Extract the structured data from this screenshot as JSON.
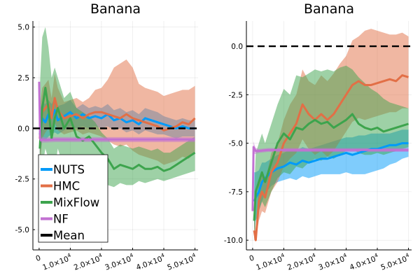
{
  "chart_data": [
    {
      "type": "line",
      "title": "Banana",
      "xlabel": "",
      "ylabel": "",
      "xlim": [
        -2000,
        51000
      ],
      "ylim": [
        -6,
        5.3
      ],
      "xticks": [
        0,
        10000,
        20000,
        30000,
        40000,
        50000
      ],
      "xtick_labels": [
        {
          "base": "0",
          "exp": ""
        },
        {
          "base": "1.0×10",
          "exp": "4"
        },
        {
          "base": "2.0×10",
          "exp": "4"
        },
        {
          "base": "3.0×10",
          "exp": "4"
        },
        {
          "base": "4.0×10",
          "exp": "4"
        },
        {
          "base": "5.0×10",
          "exp": "4"
        }
      ],
      "yticks": [
        5,
        2.5,
        0,
        -2.5,
        -5
      ],
      "ytick_labels": [
        "5.0",
        "2.5",
        "0.0",
        "-2.5",
        "-5.0"
      ],
      "grid": true,
      "legend": {
        "position": "bottom-left"
      },
      "reference_line": {
        "name": "Mean",
        "y": 0,
        "style": "dashed",
        "color": "#000000"
      },
      "series": [
        {
          "name": "NUTS",
          "color": "#009af9",
          "x": [
            200,
            1000,
            2000,
            3000,
            4000,
            5000,
            6000,
            8000,
            10000,
            12000,
            14000,
            16000,
            18000,
            20000,
            22000,
            24000,
            26000,
            28000,
            30000,
            32000,
            34000,
            36000,
            38000,
            40000,
            42000,
            44000,
            46000,
            48000,
            50000
          ],
          "y": [
            -0.3,
            0.5,
            0.3,
            0.7,
            0.5,
            0.9,
            0.4,
            0.6,
            0.8,
            0.5,
            0.7,
            0.5,
            0.6,
            0.5,
            0.7,
            0.4,
            0.5,
            0.3,
            0.4,
            0.2,
            0.5,
            0.4,
            0.3,
            0.2,
            0.1,
            0.0,
            0.1,
            0.0,
            0.0
          ],
          "lower": [
            -1.5,
            -0.5,
            -0.6,
            -0.4,
            -0.3,
            -0.2,
            -0.3,
            -0.1,
            0.1,
            0.0,
            0.1,
            0.0,
            0.1,
            0.0,
            0.1,
            -0.1,
            0.0,
            -0.2,
            -0.1,
            -0.3,
            -0.1,
            -0.2,
            -0.3,
            -0.3,
            -0.4,
            -0.5,
            -0.4,
            -0.4,
            -0.4
          ],
          "upper": [
            0.9,
            1.3,
            1.2,
            1.4,
            1.2,
            1.5,
            1.1,
            1.2,
            1.4,
            1.0,
            1.2,
            1.0,
            1.1,
            1.0,
            1.2,
            0.9,
            1.0,
            0.8,
            0.9,
            0.7,
            1.0,
            0.9,
            0.8,
            0.6,
            0.5,
            0.4,
            0.5,
            0.4,
            0.4
          ]
        },
        {
          "name": "HMC",
          "color": "#e26f46",
          "x": [
            200,
            1000,
            2000,
            3000,
            4000,
            5000,
            6000,
            8000,
            10000,
            12000,
            14000,
            16000,
            18000,
            20000,
            22000,
            24000,
            26000,
            28000,
            30000,
            32000,
            34000,
            36000,
            38000,
            40000,
            42000,
            44000,
            46000,
            48000,
            50000
          ],
          "y": [
            -0.5,
            0.8,
            1.0,
            1.2,
            0.5,
            1.5,
            0.9,
            0.5,
            0.6,
            0.7,
            0.5,
            0.7,
            0.8,
            0.8,
            0.7,
            0.6,
            0.5,
            0.7,
            0.5,
            0.4,
            0.3,
            0.2,
            0.1,
            -0.1,
            0.0,
            0.1,
            0.3,
            0.2,
            0.5
          ],
          "lower": [
            -2.0,
            -0.5,
            -0.2,
            0.0,
            -0.5,
            0.3,
            -0.1,
            -0.3,
            -0.2,
            -0.1,
            -0.3,
            -0.2,
            -0.3,
            -0.4,
            -0.6,
            -0.8,
            -0.9,
            -0.8,
            -1.1,
            -1.3,
            -1.4,
            -1.5,
            -1.6,
            -1.8,
            -1.7,
            -1.6,
            -1.4,
            -1.5,
            -1.2
          ],
          "upper": [
            1.0,
            2.0,
            2.2,
            2.4,
            1.5,
            2.7,
            2.0,
            1.3,
            1.4,
            1.5,
            1.3,
            1.5,
            1.9,
            2.0,
            2.4,
            3.0,
            3.2,
            3.4,
            3.0,
            2.2,
            2.0,
            1.9,
            1.8,
            1.6,
            1.7,
            1.8,
            1.9,
            1.9,
            2.1
          ]
        },
        {
          "name": "MixFlow",
          "color": "#3da44d",
          "x": [
            200,
            1000,
            2000,
            3000,
            4000,
            5000,
            6000,
            8000,
            10000,
            12000,
            14000,
            16000,
            18000,
            20000,
            22000,
            24000,
            26000,
            28000,
            30000,
            32000,
            34000,
            36000,
            38000,
            40000,
            42000,
            44000,
            46000,
            48000,
            50000
          ],
          "y": [
            -1.0,
            1.0,
            2.0,
            1.0,
            -0.5,
            0.5,
            1.0,
            0.0,
            0.5,
            -0.4,
            -0.6,
            -0.4,
            -0.8,
            -1.2,
            -1.5,
            -2.0,
            -1.8,
            -1.9,
            -2.0,
            -1.8,
            -2.0,
            -2.0,
            -1.9,
            -2.1,
            -2.0,
            -1.8,
            -1.6,
            -1.4,
            -1.2
          ],
          "lower": [
            -4.0,
            -2.0,
            -1.0,
            -1.5,
            -3.0,
            -2.0,
            -1.0,
            -2.0,
            -1.5,
            -2.2,
            -2.5,
            -2.4,
            -2.6,
            -2.7,
            -2.8,
            -2.9,
            -2.7,
            -2.8,
            -2.8,
            -2.6,
            -2.7,
            -2.6,
            -2.5,
            -2.6,
            -2.5,
            -2.4,
            -2.3,
            -2.2,
            -2.1
          ],
          "upper": [
            2.0,
            4.5,
            5.0,
            4.0,
            2.5,
            3.0,
            2.5,
            1.5,
            1.8,
            1.0,
            0.8,
            0.6,
            0.3,
            -0.2,
            -0.5,
            -1.0,
            -0.8,
            -0.9,
            -1.0,
            -0.9,
            -1.0,
            -1.1,
            -1.0,
            -1.2,
            -1.2,
            -1.0,
            -0.8,
            -0.6,
            -0.4
          ]
        },
        {
          "name": "NF",
          "color": "#c271d2",
          "x": [
            0,
            300,
            600,
            1000,
            2000,
            5000,
            10000,
            20000,
            30000,
            40000,
            50000
          ],
          "y": [
            2.3,
            -0.5,
            -0.6,
            -0.55,
            -0.58,
            -0.55,
            -0.55,
            -0.55,
            -0.55,
            -0.55,
            -0.55
          ],
          "lower": [
            1.8,
            -0.8,
            -0.75,
            -0.7,
            -0.7,
            -0.68,
            -0.68,
            -0.68,
            -0.68,
            -0.68,
            -0.68
          ],
          "upper": [
            2.6,
            -0.3,
            -0.45,
            -0.42,
            -0.45,
            -0.43,
            -0.43,
            -0.43,
            -0.43,
            -0.43,
            -0.43
          ]
        }
      ]
    },
    {
      "type": "line",
      "title": "Banana",
      "xlabel": "",
      "ylabel": "",
      "xlim": [
        -2000,
        51000
      ],
      "ylim": [
        -10.5,
        1.3
      ],
      "xticks": [
        0,
        10000,
        20000,
        30000,
        40000,
        50000
      ],
      "xtick_labels": [
        {
          "base": "0",
          "exp": ""
        },
        {
          "base": "1.0×10",
          "exp": "4"
        },
        {
          "base": "2.0×10",
          "exp": "4"
        },
        {
          "base": "3.0×10",
          "exp": "4"
        },
        {
          "base": "4.0×10",
          "exp": "4"
        },
        {
          "base": "5.0×10",
          "exp": "4"
        }
      ],
      "yticks": [
        0,
        -2.5,
        -5,
        -7.5,
        -10
      ],
      "ytick_labels": [
        "0.0",
        "-2.5",
        "-5.0",
        "-7.5",
        "-10.0"
      ],
      "grid": true,
      "reference_line": {
        "name": "Mean",
        "y": 0,
        "style": "dashed",
        "color": "#000000"
      },
      "series": [
        {
          "name": "NUTS",
          "color": "#009af9",
          "x": [
            500,
            1000,
            2000,
            3000,
            4000,
            6000,
            8000,
            10000,
            12000,
            14000,
            16000,
            18000,
            20000,
            22000,
            24000,
            26000,
            28000,
            30000,
            32000,
            34000,
            36000,
            38000,
            40000,
            42000,
            44000,
            46000,
            48000,
            50000
          ],
          "y": [
            -8.0,
            -7.8,
            -7.5,
            -7.0,
            -6.8,
            -6.5,
            -6.3,
            -6.2,
            -6.0,
            -6.1,
            -5.9,
            -6.0,
            -5.9,
            -5.8,
            -5.8,
            -5.7,
            -5.6,
            -5.5,
            -5.6,
            -5.5,
            -5.4,
            -5.3,
            -5.3,
            -5.2,
            -5.1,
            -5.1,
            -5.0,
            -5.0
          ],
          "lower": [
            -9.5,
            -9.0,
            -8.5,
            -8.0,
            -7.6,
            -7.2,
            -7.0,
            -6.9,
            -6.8,
            -6.9,
            -6.7,
            -6.8,
            -6.7,
            -6.6,
            -6.6,
            -6.6,
            -6.6,
            -6.5,
            -6.6,
            -6.6,
            -6.6,
            -6.5,
            -6.4,
            -6.3,
            -6.1,
            -6.0,
            -5.8,
            -5.7
          ],
          "upper": [
            -6.5,
            -6.5,
            -6.4,
            -6.0,
            -6.0,
            -5.8,
            -5.6,
            -5.5,
            -5.3,
            -5.4,
            -5.2,
            -5.3,
            -5.2,
            -5.1,
            -5.0,
            -4.9,
            -4.8,
            -4.7,
            -4.7,
            -4.6,
            -4.6,
            -4.5,
            -4.5,
            -4.5,
            -4.5,
            -4.4,
            -4.3,
            -4.3
          ]
        },
        {
          "name": "HMC",
          "color": "#e26f46",
          "x": [
            500,
            1000,
            2000,
            3000,
            4000,
            6000,
            8000,
            10000,
            12000,
            14000,
            16000,
            18000,
            20000,
            22000,
            24000,
            26000,
            28000,
            30000,
            32000,
            34000,
            36000,
            38000,
            40000,
            42000,
            44000,
            46000,
            48000,
            50000
          ],
          "y": [
            -9.5,
            -10.0,
            -8.0,
            -7.5,
            -7.8,
            -6.5,
            -6.0,
            -5.0,
            -4.5,
            -4.0,
            -3.0,
            -3.5,
            -3.8,
            -3.5,
            -3.8,
            -3.5,
            -3.0,
            -2.5,
            -2.0,
            -1.8,
            -2.0,
            -2.0,
            -1.9,
            -1.8,
            -1.7,
            -1.8,
            -1.5,
            -1.6
          ],
          "lower": [
            -10.0,
            -10.0,
            -9.0,
            -8.5,
            -8.6,
            -7.5,
            -7.0,
            -6.2,
            -5.8,
            -5.5,
            -4.8,
            -5.3,
            -5.6,
            -5.4,
            -5.7,
            -5.4,
            -4.9,
            -4.4,
            -3.9,
            -3.7,
            -3.8,
            -3.7,
            -3.6,
            -3.5,
            -3.4,
            -3.4,
            -3.2,
            -3.2
          ],
          "upper": [
            -8.5,
            -9.5,
            -7.0,
            -6.5,
            -7.0,
            -5.5,
            -5.0,
            -3.8,
            -3.0,
            -2.5,
            -1.2,
            -1.8,
            -2.0,
            -1.5,
            -1.8,
            -1.4,
            -0.9,
            -0.5,
            0.3,
            0.5,
            0.8,
            0.9,
            0.8,
            0.7,
            0.6,
            0.6,
            0.7,
            0.5
          ]
        },
        {
          "name": "MixFlow",
          "color": "#3da44d",
          "x": [
            500,
            1000,
            2000,
            3000,
            4000,
            6000,
            8000,
            10000,
            12000,
            14000,
            16000,
            18000,
            20000,
            22000,
            24000,
            26000,
            28000,
            30000,
            32000,
            34000,
            36000,
            38000,
            40000,
            42000,
            44000,
            46000,
            48000,
            50000
          ],
          "y": [
            -9.0,
            -7.5,
            -7.0,
            -6.5,
            -7.0,
            -6.0,
            -5.0,
            -4.5,
            -4.8,
            -4.2,
            -4.3,
            -4.0,
            -3.8,
            -4.0,
            -3.9,
            -4.2,
            -4.0,
            -3.8,
            -3.5,
            -4.0,
            -4.2,
            -4.3,
            -4.2,
            -4.4,
            -4.3,
            -4.2,
            -4.1,
            -4.0
          ],
          "lower": [
            -10.0,
            -9.0,
            -8.5,
            -8.0,
            -8.3,
            -7.5,
            -6.8,
            -6.5,
            -6.6,
            -6.2,
            -6.3,
            -6.0,
            -5.8,
            -5.9,
            -5.7,
            -5.8,
            -5.6,
            -5.4,
            -5.3,
            -5.5,
            -5.6,
            -5.6,
            -5.5,
            -5.6,
            -5.5,
            -5.4,
            -5.3,
            -5.2
          ],
          "upper": [
            -7.5,
            -5.5,
            -5.0,
            -4.5,
            -5.0,
            -4.0,
            -3.0,
            -2.2,
            -2.5,
            -1.5,
            -1.6,
            -1.4,
            -1.2,
            -1.3,
            -1.2,
            -1.3,
            -1.1,
            -1.0,
            -1.2,
            -1.6,
            -1.9,
            -2.2,
            -2.4,
            -2.7,
            -2.9,
            -3.0,
            -3.1,
            -3.2
          ]
        },
        {
          "name": "NF",
          "color": "#c271d2",
          "x": [
            0,
            300,
            600,
            1000,
            2000,
            5000,
            10000,
            20000,
            30000,
            40000,
            50000
          ],
          "y": [
            -8.5,
            -5.2,
            -5.3,
            -5.4,
            -5.4,
            -5.35,
            -5.35,
            -5.35,
            -5.35,
            -5.35,
            -5.35
          ],
          "lower": [
            -9.0,
            -5.5,
            -5.55,
            -5.55,
            -5.5,
            -5.45,
            -5.45,
            -5.45,
            -5.45,
            -5.45,
            -5.45
          ],
          "upper": [
            -8.0,
            -4.9,
            -5.1,
            -5.25,
            -5.3,
            -5.25,
            -5.25,
            -5.25,
            -5.25,
            -5.25,
            -5.25
          ]
        }
      ]
    }
  ]
}
